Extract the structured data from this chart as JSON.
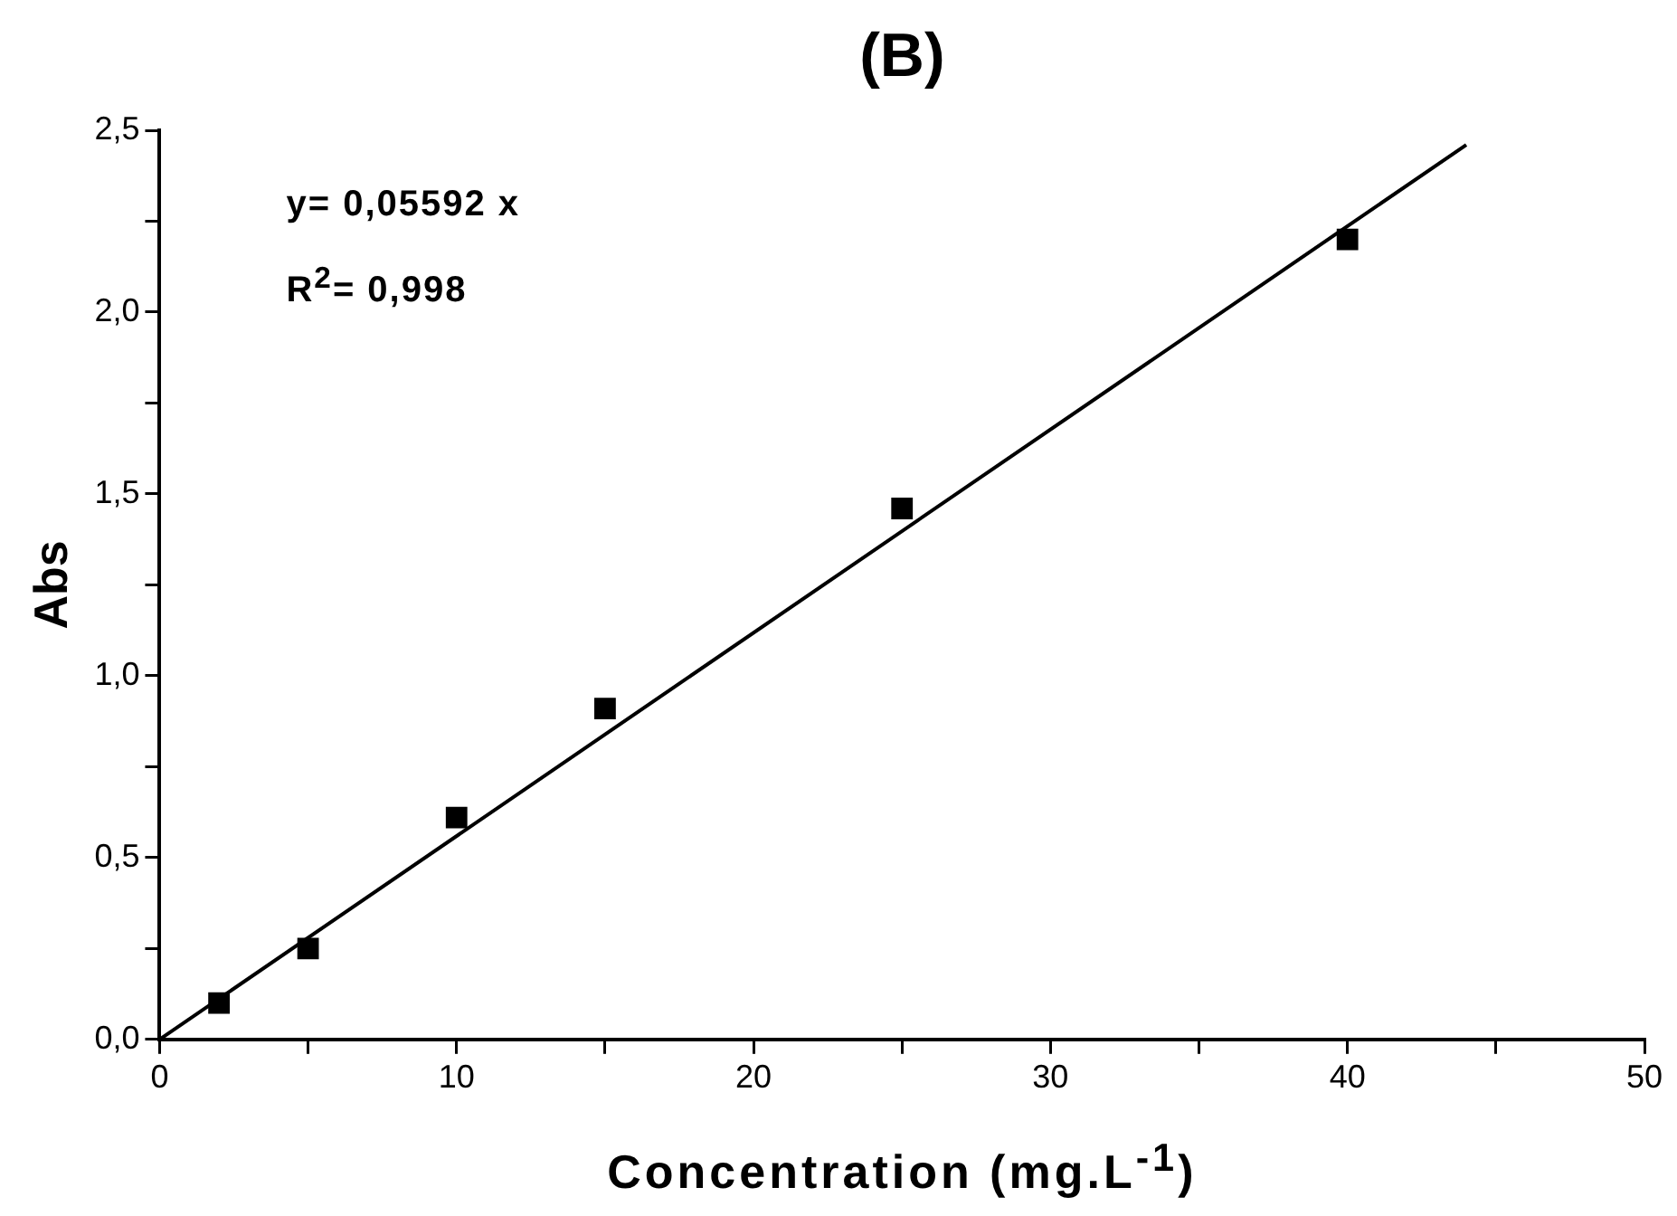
{
  "chart_data": {
    "type": "scatter",
    "title": "(B)",
    "xlabel": "Concentration (mg.L$^{-1}$)",
    "ylabel": "Abs",
    "series": [
      {
        "type": "scatter",
        "color": "#000000",
        "marker": "square",
        "x": [
          2,
          5,
          10,
          15,
          25,
          40
        ],
        "values": [
          0.1,
          0.25,
          0.61,
          0.91,
          1.46,
          2.2
        ]
      },
      {
        "type": "line",
        "color": "#000000",
        "marker": "none",
        "line_style": "solid",
        "x": [
          0,
          44
        ],
        "values": [
          0,
          2.46
        ]
      }
    ],
    "xlim": [
      0,
      50
    ],
    "xticks": [
      0,
      {
        "value": 5,
        "label": null
      },
      10,
      {
        "value": 15,
        "label": null
      },
      20,
      {
        "value": 25,
        "label": null
      },
      30,
      {
        "value": 35,
        "label": null
      },
      40,
      {
        "value": 45,
        "label": null
      },
      50
    ],
    "ylim": [
      0,
      2.5
    ],
    "yticks": [
      {
        "value": 0,
        "label": "0,0"
      },
      {
        "value": 0.25,
        "label": null
      },
      {
        "value": 0.5,
        "label": "0,5"
      },
      {
        "value": 0.75,
        "label": null
      },
      {
        "value": 1,
        "label": "1,0"
      },
      {
        "value": 1.25,
        "label": null
      },
      {
        "value": 1.5,
        "label": "1,5"
      },
      {
        "value": 1.75,
        "label": null
      },
      {
        "value": 2,
        "label": "2,0"
      },
      {
        "value": 2.25,
        "label": null
      },
      {
        "value": 2.5,
        "label": "2,5"
      }
    ],
    "grid": false,
    "legend": false,
    "annotations": [
      "y= 0,05592 x",
      "R$^{2}$= 0,998"
    ]
  }
}
